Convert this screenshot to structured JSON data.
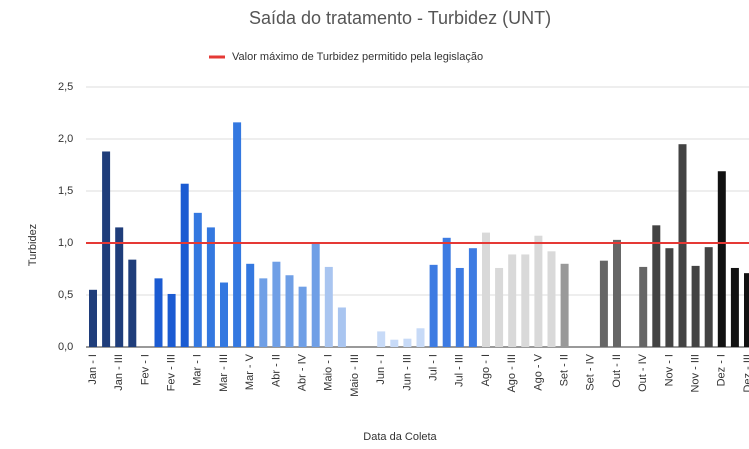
{
  "chart_data": {
    "type": "bar",
    "title": "Saída do tratamento - Turbidez (UNT)",
    "x_label": "Data da Coleta",
    "y_label": "Turbidez",
    "reference_line": {
      "name": "Valor máximo de Turbidez permitido pela legislação",
      "value": 1.0,
      "color": "#e53935"
    },
    "categories": [
      "Jan - I",
      null,
      "Jan - III",
      null,
      "Fev - I",
      null,
      "Fev - III",
      null,
      "Mar - I",
      null,
      "Mar - III",
      null,
      "Mar - V",
      null,
      "Abr - II",
      null,
      "Abr - IV",
      null,
      "Maio - I",
      null,
      "Maio - III",
      null,
      "Jun - I",
      null,
      "Jun - III",
      null,
      "Jul - I",
      null,
      "Jul - III",
      null,
      "Ago - I",
      null,
      "Ago - III",
      null,
      "Ago - V",
      null,
      "Set - II",
      null,
      "Set - IV",
      null,
      "Out - II",
      null,
      "Out - IV",
      null,
      "Nov - I",
      null,
      "Nov - III",
      null,
      "Dez - I",
      null,
      "Dez - III"
    ],
    "values": [
      0.55,
      1.88,
      1.15,
      0.84,
      0,
      0.66,
      0.51,
      1.57,
      1.29,
      1.15,
      0.62,
      2.16,
      0.8,
      0.66,
      0.82,
      0.69,
      0.58,
      1.0,
      0.77,
      0.38,
      0,
      0,
      0.15,
      0.07,
      0.08,
      0.18,
      0.79,
      1.05,
      0.76,
      0.95,
      1.1,
      0.76,
      0.89,
      0.89,
      1.07,
      0.92,
      0.8,
      0,
      0,
      0.83,
      1.03,
      0,
      0.77,
      1.17,
      0.95,
      1.95,
      0.78,
      0.96,
      1.69,
      0.76,
      0.71
    ],
    "colors": [
      "#1f3d7a",
      "#1f3d7a",
      "#1f3d7a",
      "#1f3d7a",
      "#1b5bd2",
      "#1b5bd2",
      "#1b5bd2",
      "#1b5bd2",
      "#3478e0",
      "#3478e0",
      "#3478e0",
      "#3478e0",
      "#3478e0",
      "#6f9fe6",
      "#6f9fe6",
      "#6f9fe6",
      "#6f9fe6",
      "#6f9fe6",
      "#a9c5f0",
      "#a9c5f0",
      "#a9c5f0",
      "#a9c5f0",
      "#c7daf7",
      "#c7daf7",
      "#c7daf7",
      "#c7daf7",
      "#3d7be2",
      "#3d7be2",
      "#3d7be2",
      "#3d7be2",
      "#d9d9d9",
      "#d9d9d9",
      "#d9d9d9",
      "#d9d9d9",
      "#d9d9d9",
      "#d9d9d9",
      "#999999",
      "#999999",
      "#999999",
      "#666666",
      "#666666",
      "#666666",
      "#666666",
      "#434343",
      "#434343",
      "#434343",
      "#434343",
      "#434343",
      "#111111",
      "#111111",
      "#111111"
    ],
    "ylim": [
      0,
      2.5
    ],
    "yticks": [
      {
        "value": 0,
        "label": "0,0"
      },
      {
        "value": 0.5,
        "label": "0,5"
      },
      {
        "value": 1.0,
        "label": "1,0"
      },
      {
        "value": 1.5,
        "label": "1,5"
      },
      {
        "value": 2.0,
        "label": "2,0"
      },
      {
        "value": 2.5,
        "label": "2,5"
      }
    ],
    "grid": true
  }
}
